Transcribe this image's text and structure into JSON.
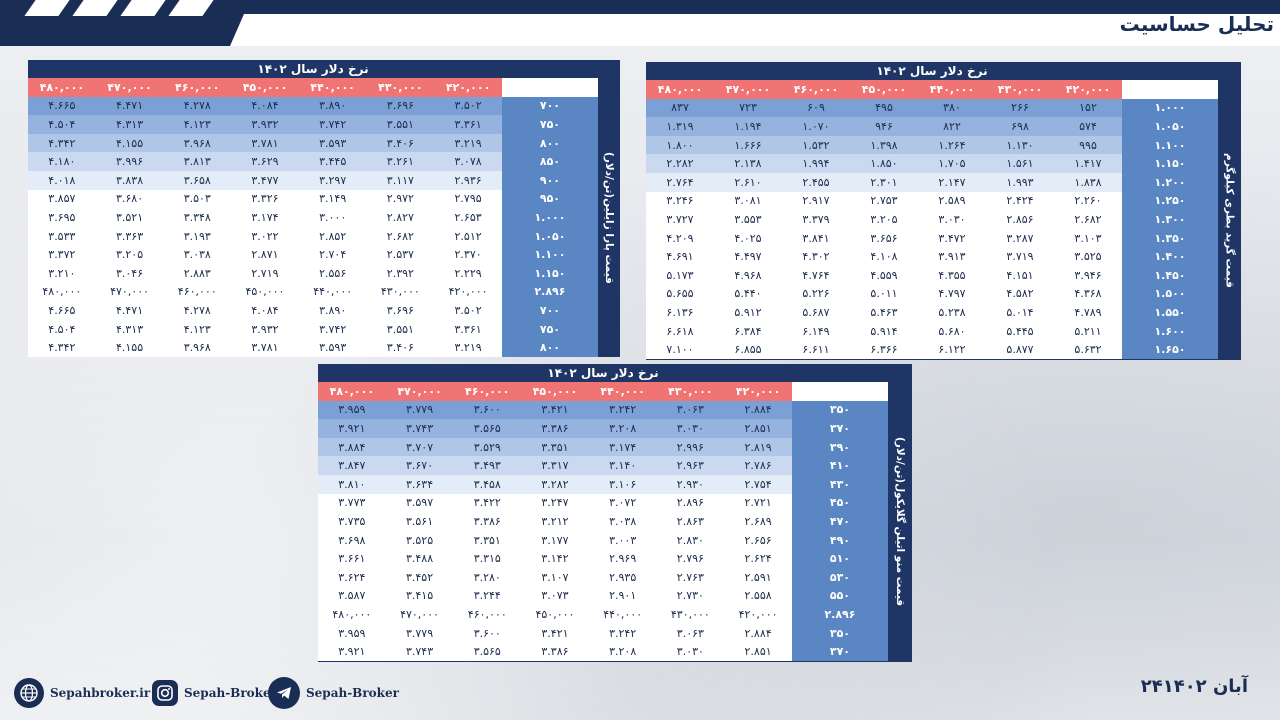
{
  "header": {
    "title": "تحلیل حساسیت"
  },
  "footer": {
    "website": "Sepahbroker.ir",
    "instagram": "Sepah-Broker",
    "telegram": "Sepah-Broker",
    "date": "۲۴آبان ۱۴۰۲"
  },
  "colors": {
    "navy": "#1e3566",
    "header_red": "#f07474",
    "row_label_blue": "#5a86c4",
    "cell_dark": "#7aa0d6",
    "cell_light": "#ffffff"
  },
  "tables": {
    "paraxylene": {
      "title": "نرخ دلار سال ۱۴۰۲",
      "side_label": "قیمت پارا زایلین(تن/دلار)",
      "headers": [
        "۴۲۰,۰۰۰",
        "۴۳۰,۰۰۰",
        "۴۴۰,۰۰۰",
        "۴۵۰,۰۰۰",
        "۴۶۰,۰۰۰",
        "۴۷۰,۰۰۰",
        "۴۸۰,۰۰۰"
      ],
      "rows": [
        {
          "label": "۷۰۰",
          "values": [
            "۳.۵۰۲",
            "۳.۶۹۶",
            "۳.۸۹۰",
            "۴.۰۸۴",
            "۴.۲۷۸",
            "۴.۴۷۱",
            "۴.۶۶۵"
          ]
        },
        {
          "label": "۷۵۰",
          "values": [
            "۳.۳۶۱",
            "۳.۵۵۱",
            "۳.۷۴۲",
            "۳.۹۳۲",
            "۴.۱۲۳",
            "۴.۳۱۳",
            "۴.۵۰۴"
          ]
        },
        {
          "label": "۸۰۰",
          "values": [
            "۳.۲۱۹",
            "۳.۴۰۶",
            "۳.۵۹۳",
            "۳.۷۸۱",
            "۳.۹۶۸",
            "۴.۱۵۵",
            "۴.۳۴۲"
          ]
        },
        {
          "label": "۸۵۰",
          "values": [
            "۳.۰۷۸",
            "۳.۲۶۱",
            "۳.۴۴۵",
            "۳.۶۲۹",
            "۳.۸۱۳",
            "۳.۹۹۶",
            "۴.۱۸۰"
          ]
        },
        {
          "label": "۹۰۰",
          "values": [
            "۲.۹۳۶",
            "۳.۱۱۷",
            "۳.۲۹۷",
            "۳.۴۷۷",
            "۳.۶۵۸",
            "۳.۸۳۸",
            "۴.۰۱۸"
          ]
        },
        {
          "label": "۹۵۰",
          "values": [
            "۲.۷۹۵",
            "۲.۹۷۲",
            "۳.۱۴۹",
            "۳.۳۲۶",
            "۳.۵۰۳",
            "۳.۶۸۰",
            "۳.۸۵۷"
          ]
        },
        {
          "label": "۱.۰۰۰",
          "values": [
            "۲.۶۵۳",
            "۲.۸۲۷",
            "۳.۰۰۰",
            "۳.۱۷۴",
            "۳.۳۴۸",
            "۳.۵۲۱",
            "۳.۶۹۵"
          ]
        },
        {
          "label": "۱.۰۵۰",
          "values": [
            "۲.۵۱۲",
            "۲.۶۸۲",
            "۲.۸۵۲",
            "۳.۰۲۲",
            "۳.۱۹۳",
            "۳.۳۶۳",
            "۳.۵۳۳"
          ]
        },
        {
          "label": "۱.۱۰۰",
          "values": [
            "۲.۳۷۰",
            "۲.۵۳۷",
            "۲.۷۰۴",
            "۲.۸۷۱",
            "۳.۰۳۸",
            "۳.۲۰۵",
            "۳.۳۷۲"
          ]
        },
        {
          "label": "۱.۱۵۰",
          "values": [
            "۲.۲۲۹",
            "۲.۳۹۲",
            "۲.۵۵۶",
            "۲.۷۱۹",
            "۲.۸۸۳",
            "۳.۰۴۶",
            "۳.۲۱۰"
          ]
        },
        {
          "label": "۲.۸۹۶",
          "values": [
            "۴۲۰,۰۰۰",
            "۴۳۰,۰۰۰",
            "۴۴۰,۰۰۰",
            "۴۵۰,۰۰۰",
            "۴۶۰,۰۰۰",
            "۴۷۰,۰۰۰",
            "۴۸۰,۰۰۰"
          ]
        },
        {
          "label": "۷۰۰",
          "values": [
            "۳.۵۰۲",
            "۳.۶۹۶",
            "۳.۸۹۰",
            "۴.۰۸۴",
            "۴.۲۷۸",
            "۴.۴۷۱",
            "۴.۶۶۵"
          ]
        },
        {
          "label": "۷۵۰",
          "values": [
            "۳.۳۶۱",
            "۳.۵۵۱",
            "۳.۷۴۲",
            "۳.۹۳۲",
            "۴.۱۲۳",
            "۴.۳۱۳",
            "۴.۵۰۴"
          ]
        },
        {
          "label": "۸۰۰",
          "values": [
            "۳.۲۱۹",
            "۳.۴۰۶",
            "۳.۵۹۳",
            "۳.۷۸۱",
            "۳.۹۶۸",
            "۴.۱۵۵",
            "۴.۳۴۲"
          ]
        }
      ]
    },
    "granule": {
      "title": "نرخ دلار سال ۱۴۰۲",
      "side_label": "قیمت گرید بطری کیلوگرم",
      "headers": [
        "۴۲۰,۰۰۰",
        "۴۳۰,۰۰۰",
        "۴۴۰,۰۰۰",
        "۴۵۰,۰۰۰",
        "۴۶۰,۰۰۰",
        "۴۷۰,۰۰۰",
        "۴۸۰,۰۰۰"
      ],
      "rows": [
        {
          "label": "۱.۰۰۰",
          "values": [
            "۱۵۲",
            "۲۶۶",
            "۳۸۰",
            "۴۹۵",
            "۶۰۹",
            "۷۲۳",
            "۸۳۷"
          ]
        },
        {
          "label": "۱.۰۵۰",
          "values": [
            "۵۷۴",
            "۶۹۸",
            "۸۲۲",
            "۹۴۶",
            "۱.۰۷۰",
            "۱.۱۹۴",
            "۱.۳۱۹"
          ]
        },
        {
          "label": "۱.۱۰۰",
          "values": [
            "۹۹۵",
            "۱.۱۳۰",
            "۱.۲۶۴",
            "۱.۳۹۸",
            "۱.۵۳۲",
            "۱.۶۶۶",
            "۱.۸۰۰"
          ]
        },
        {
          "label": "۱.۱۵۰",
          "values": [
            "۱.۴۱۷",
            "۱.۵۶۱",
            "۱.۷۰۵",
            "۱.۸۵۰",
            "۱.۹۹۴",
            "۲.۱۳۸",
            "۲.۲۸۲"
          ]
        },
        {
          "label": "۱.۲۰۰",
          "values": [
            "۱.۸۳۸",
            "۱.۹۹۳",
            "۲.۱۴۷",
            "۲.۳۰۱",
            "۲.۴۵۵",
            "۲.۶۱۰",
            "۲.۷۶۴"
          ]
        },
        {
          "label": "۱.۲۵۰",
          "values": [
            "۲.۲۶۰",
            "۲.۴۲۴",
            "۲.۵۸۹",
            "۲.۷۵۳",
            "۲.۹۱۷",
            "۳.۰۸۱",
            "۳.۲۴۶"
          ]
        },
        {
          "label": "۱.۳۰۰",
          "values": [
            "۲.۶۸۲",
            "۲.۸۵۶",
            "۳.۰۳۰",
            "۳.۲۰۵",
            "۳.۳۷۹",
            "۳.۵۵۳",
            "۳.۷۲۷"
          ]
        },
        {
          "label": "۱.۳۵۰",
          "values": [
            "۳.۱۰۳",
            "۳.۲۸۷",
            "۳.۴۷۲",
            "۳.۶۵۶",
            "۳.۸۴۱",
            "۴.۰۲۵",
            "۴.۲۰۹"
          ]
        },
        {
          "label": "۱.۴۰۰",
          "values": [
            "۳.۵۲۵",
            "۳.۷۱۹",
            "۳.۹۱۳",
            "۴.۱۰۸",
            "۴.۳۰۲",
            "۴.۴۹۷",
            "۴.۶۹۱"
          ]
        },
        {
          "label": "۱.۴۵۰",
          "values": [
            "۳.۹۴۶",
            "۴.۱۵۱",
            "۴.۳۵۵",
            "۴.۵۵۹",
            "۴.۷۶۴",
            "۴.۹۶۸",
            "۵.۱۷۳"
          ]
        },
        {
          "label": "۱.۵۰۰",
          "values": [
            "۴.۳۶۸",
            "۴.۵۸۲",
            "۴.۷۹۷",
            "۵.۰۱۱",
            "۵.۲۲۶",
            "۵.۴۴۰",
            "۵.۶۵۵"
          ]
        },
        {
          "label": "۱.۵۵۰",
          "values": [
            "۴.۷۸۹",
            "۵.۰۱۴",
            "۵.۲۳۸",
            "۵.۴۶۳",
            "۵.۶۸۷",
            "۵.۹۱۲",
            "۶.۱۳۶"
          ]
        },
        {
          "label": "۱.۶۰۰",
          "values": [
            "۵.۲۱۱",
            "۵.۴۴۵",
            "۵.۶۸۰",
            "۵.۹۱۴",
            "۶.۱۴۹",
            "۶.۳۸۴",
            "۶.۶۱۸"
          ]
        },
        {
          "label": "۱.۶۵۰",
          "values": [
            "۵.۶۳۲",
            "۵.۸۷۷",
            "۶.۱۲۲",
            "۶.۳۶۶",
            "۶.۶۱۱",
            "۶.۸۵۵",
            "۷.۱۰۰"
          ]
        }
      ]
    },
    "meg": {
      "title": "نرخ دلار سال ۱۴۰۲",
      "side_label": "قیمت منو اتیلن گلایکول(تن/دلار)",
      "headers": [
        "۴۲۰,۰۰۰",
        "۴۳۰,۰۰۰",
        "۴۴۰,۰۰۰",
        "۴۵۰,۰۰۰",
        "۴۶۰,۰۰۰",
        "۴۷۰,۰۰۰",
        "۴۸۰,۰۰۰"
      ],
      "rows": [
        {
          "label": "۳۵۰",
          "values": [
            "۲.۸۸۴",
            "۳.۰۶۳",
            "۳.۲۴۲",
            "۳.۴۲۱",
            "۳.۶۰۰",
            "۳.۷۷۹",
            "۳.۹۵۹"
          ]
        },
        {
          "label": "۳۷۰",
          "values": [
            "۲.۸۵۱",
            "۳.۰۳۰",
            "۳.۲۰۸",
            "۳.۳۸۶",
            "۳.۵۶۵",
            "۳.۷۴۳",
            "۳.۹۲۱"
          ]
        },
        {
          "label": "۳۹۰",
          "values": [
            "۲.۸۱۹",
            "۲.۹۹۶",
            "۳.۱۷۴",
            "۳.۳۵۱",
            "۳.۵۲۹",
            "۳.۷۰۷",
            "۳.۸۸۴"
          ]
        },
        {
          "label": "۴۱۰",
          "values": [
            "۲.۷۸۶",
            "۲.۹۶۳",
            "۳.۱۴۰",
            "۳.۳۱۷",
            "۳.۴۹۳",
            "۳.۶۷۰",
            "۳.۸۴۷"
          ]
        },
        {
          "label": "۴۳۰",
          "values": [
            "۲.۷۵۴",
            "۲.۹۳۰",
            "۳.۱۰۶",
            "۳.۲۸۲",
            "۳.۴۵۸",
            "۳.۶۳۴",
            "۳.۸۱۰"
          ]
        },
        {
          "label": "۴۵۰",
          "values": [
            "۲.۷۲۱",
            "۲.۸۹۶",
            "۳.۰۷۲",
            "۳.۲۴۷",
            "۳.۴۲۲",
            "۳.۵۹۷",
            "۳.۷۷۳"
          ]
        },
        {
          "label": "۴۷۰",
          "values": [
            "۲.۶۸۹",
            "۲.۸۶۳",
            "۳.۰۳۸",
            "۳.۲۱۲",
            "۳.۳۸۶",
            "۳.۵۶۱",
            "۳.۷۳۵"
          ]
        },
        {
          "label": "۴۹۰",
          "values": [
            "۲.۶۵۶",
            "۲.۸۳۰",
            "۳.۰۰۳",
            "۳.۱۷۷",
            "۳.۳۵۱",
            "۳.۵۲۵",
            "۳.۶۹۸"
          ]
        },
        {
          "label": "۵۱۰",
          "values": [
            "۲.۶۲۴",
            "۲.۷۹۶",
            "۲.۹۶۹",
            "۳.۱۴۲",
            "۳.۳۱۵",
            "۳.۴۸۸",
            "۳.۶۶۱"
          ]
        },
        {
          "label": "۵۳۰",
          "values": [
            "۲.۵۹۱",
            "۲.۷۶۳",
            "۲.۹۳۵",
            "۳.۱۰۷",
            "۳.۲۸۰",
            "۳.۴۵۲",
            "۳.۶۲۴"
          ]
        },
        {
          "label": "۵۵۰",
          "values": [
            "۲.۵۵۸",
            "۲.۷۳۰",
            "۲.۹۰۱",
            "۳.۰۷۳",
            "۳.۲۴۴",
            "۳.۴۱۵",
            "۳.۵۸۷"
          ]
        },
        {
          "label": "۲.۸۹۶",
          "values": [
            "۴۲۰,۰۰۰",
            "۴۳۰,۰۰۰",
            "۴۴۰,۰۰۰",
            "۴۵۰,۰۰۰",
            "۴۶۰,۰۰۰",
            "۴۷۰,۰۰۰",
            "۴۸۰,۰۰۰"
          ]
        },
        {
          "label": "۳۵۰",
          "values": [
            "۲.۸۸۴",
            "۳.۰۶۳",
            "۳.۲۴۲",
            "۳.۴۲۱",
            "۳.۶۰۰",
            "۳.۷۷۹",
            "۳.۹۵۹"
          ]
        },
        {
          "label": "۳۷۰",
          "values": [
            "۲.۸۵۱",
            "۳.۰۳۰",
            "۳.۲۰۸",
            "۳.۳۸۶",
            "۳.۵۶۵",
            "۳.۷۴۳",
            "۳.۹۲۱"
          ]
        }
      ]
    }
  }
}
